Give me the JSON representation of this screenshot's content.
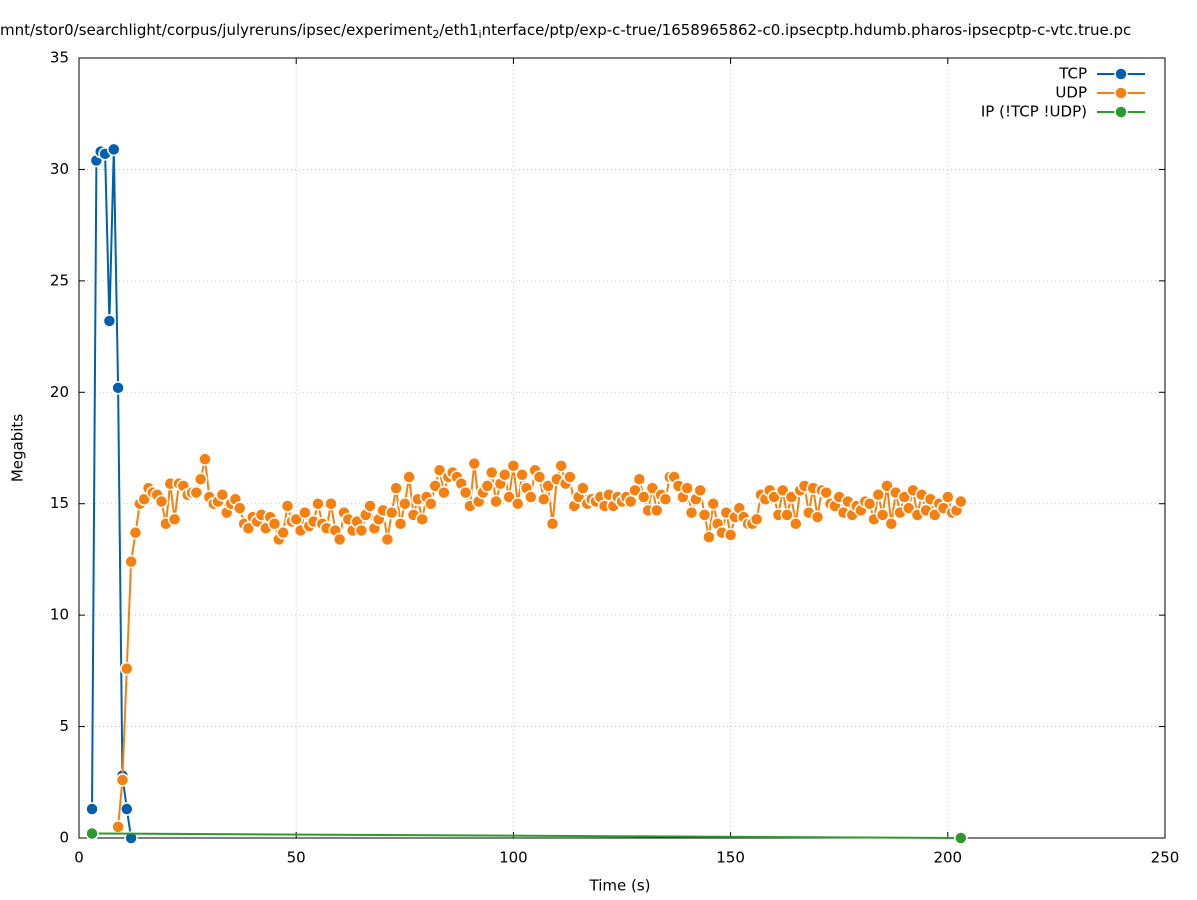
{
  "chart_data": {
    "type": "line",
    "title": [
      "mnt/stor0/searchlight/corpus/julyreruns/ipsec/experiment",
      "2",
      "/eth1",
      "i",
      "nterface/ptp/exp-c-true/1658965862-c0.ipsecptp.hdumb.pharos-ipsecptp-c-vtc.true.pc"
    ],
    "x_label": "Time (s)",
    "y_label": "Megabits",
    "xlim": [
      0,
      250
    ],
    "ylim": [
      0,
      35
    ],
    "xticks": [
      0,
      50,
      100,
      150,
      200,
      250
    ],
    "yticks": [
      0,
      5,
      10,
      15,
      20,
      25,
      30,
      35
    ],
    "grid": true,
    "legend": "top-right",
    "series": [
      {
        "name": "TCP",
        "color": "#0060ad",
        "x": [
          3,
          4,
          5,
          6,
          7,
          8,
          9,
          10,
          11,
          12
        ],
        "values": [
          1.3,
          30.4,
          30.8,
          30.7,
          23.2,
          30.9,
          20.2,
          2.8,
          1.3,
          0
        ]
      },
      {
        "name": "UDP",
        "color": "#f5800f",
        "x": [
          9,
          10,
          11,
          12,
          13,
          14,
          15,
          16,
          17,
          18,
          19,
          20,
          21,
          22,
          23,
          24,
          25,
          26,
          27,
          28,
          29,
          30,
          31,
          32,
          33,
          34,
          35,
          36,
          37,
          38,
          39,
          40,
          41,
          42,
          43,
          44,
          45,
          46,
          47,
          48,
          49,
          50,
          51,
          52,
          53,
          54,
          55,
          56,
          57,
          58,
          59,
          60,
          61,
          62,
          63,
          64,
          65,
          66,
          67,
          68,
          69,
          70,
          71,
          72,
          73,
          74,
          75,
          76,
          77,
          78,
          79,
          80,
          81,
          82,
          83,
          84,
          85,
          86,
          87,
          88,
          89,
          90,
          91,
          92,
          93,
          94,
          95,
          96,
          97,
          98,
          99,
          100,
          101,
          102,
          103,
          104,
          105,
          106,
          107,
          108,
          109,
          110,
          111,
          112,
          113,
          114,
          115,
          116,
          117,
          118,
          119,
          120,
          121,
          122,
          123,
          124,
          125,
          126,
          127,
          128,
          129,
          130,
          131,
          132,
          133,
          134,
          135,
          136,
          137,
          138,
          139,
          140,
          141,
          142,
          143,
          144,
          145,
          146,
          147,
          148,
          149,
          150,
          151,
          152,
          153,
          154,
          155,
          156,
          157,
          158,
          159,
          160,
          161,
          162,
          163,
          164,
          165,
          166,
          167,
          168,
          169,
          170,
          171,
          172,
          173,
          174,
          175,
          176,
          177,
          178,
          179,
          180,
          181,
          182,
          183,
          184,
          185,
          186,
          187,
          188,
          189,
          190,
          191,
          192,
          193,
          194,
          195,
          196,
          197,
          198,
          199,
          200,
          201,
          202,
          203
        ],
        "values": [
          0.5,
          2.6,
          7.6,
          12.4,
          13.7,
          15.0,
          15.2,
          15.7,
          15.5,
          15.4,
          15.1,
          14.1,
          15.9,
          14.3,
          15.9,
          15.8,
          15.4,
          15.5,
          15.5,
          16.1,
          17.0,
          15.3,
          15.0,
          15.1,
          15.4,
          14.6,
          15.0,
          15.2,
          14.8,
          14.1,
          13.9,
          14.4,
          14.2,
          14.5,
          13.9,
          14.4,
          14.1,
          13.4,
          13.7,
          14.9,
          14.2,
          14.3,
          13.8,
          14.6,
          14.0,
          14.2,
          15.0,
          14.1,
          13.9,
          15.0,
          13.8,
          13.4,
          14.6,
          14.3,
          13.8,
          14.2,
          13.8,
          14.5,
          14.9,
          13.9,
          14.3,
          14.7,
          13.4,
          14.6,
          15.7,
          14.1,
          15.0,
          16.2,
          14.5,
          15.2,
          14.3,
          15.3,
          15.0,
          15.8,
          16.5,
          15.5,
          16.2,
          16.4,
          16.2,
          15.9,
          15.5,
          14.9,
          16.8,
          15.1,
          15.5,
          15.8,
          16.4,
          15.1,
          15.9,
          16.3,
          15.3,
          16.7,
          15.0,
          16.3,
          15.7,
          15.3,
          16.5,
          16.2,
          15.2,
          15.8,
          14.1,
          16.1,
          16.7,
          15.9,
          16.2,
          14.9,
          15.3,
          15.7,
          15.0,
          15.2,
          15.1,
          15.3,
          14.9,
          15.4,
          14.9,
          15.3,
          15.1,
          15.3,
          15.1,
          15.6,
          16.1,
          15.3,
          14.7,
          15.7,
          14.7,
          15.4,
          15.2,
          16.2,
          16.2,
          15.8,
          15.3,
          15.7,
          14.6,
          15.2,
          15.6,
          14.5,
          13.5,
          15.0,
          14.1,
          13.7,
          14.6,
          13.6,
          14.4,
          14.8,
          14.4,
          14.1,
          14.1,
          14.3,
          15.4,
          15.2,
          15.6,
          15.3,
          14.5,
          15.6,
          14.5,
          15.3,
          14.1,
          15.6,
          15.8,
          14.6,
          15.7,
          14.4,
          15.6,
          15.5,
          15.0,
          14.9,
          15.3,
          14.6,
          15.1,
          14.5,
          14.9,
          14.7,
          15.1,
          15.0,
          14.3,
          15.4,
          14.5,
          15.8,
          14.1,
          15.5,
          14.6,
          15.3,
          14.8,
          15.6,
          14.5,
          15.4,
          14.7,
          15.2,
          14.5,
          15.0,
          14.8,
          15.3,
          14.6,
          14.7,
          15.1
        ]
      },
      {
        "name": "IP (!TCP  !UDP)",
        "color": "#2a9a2a",
        "x": [
          3,
          203
        ],
        "values": [
          0.2,
          0
        ]
      }
    ]
  }
}
